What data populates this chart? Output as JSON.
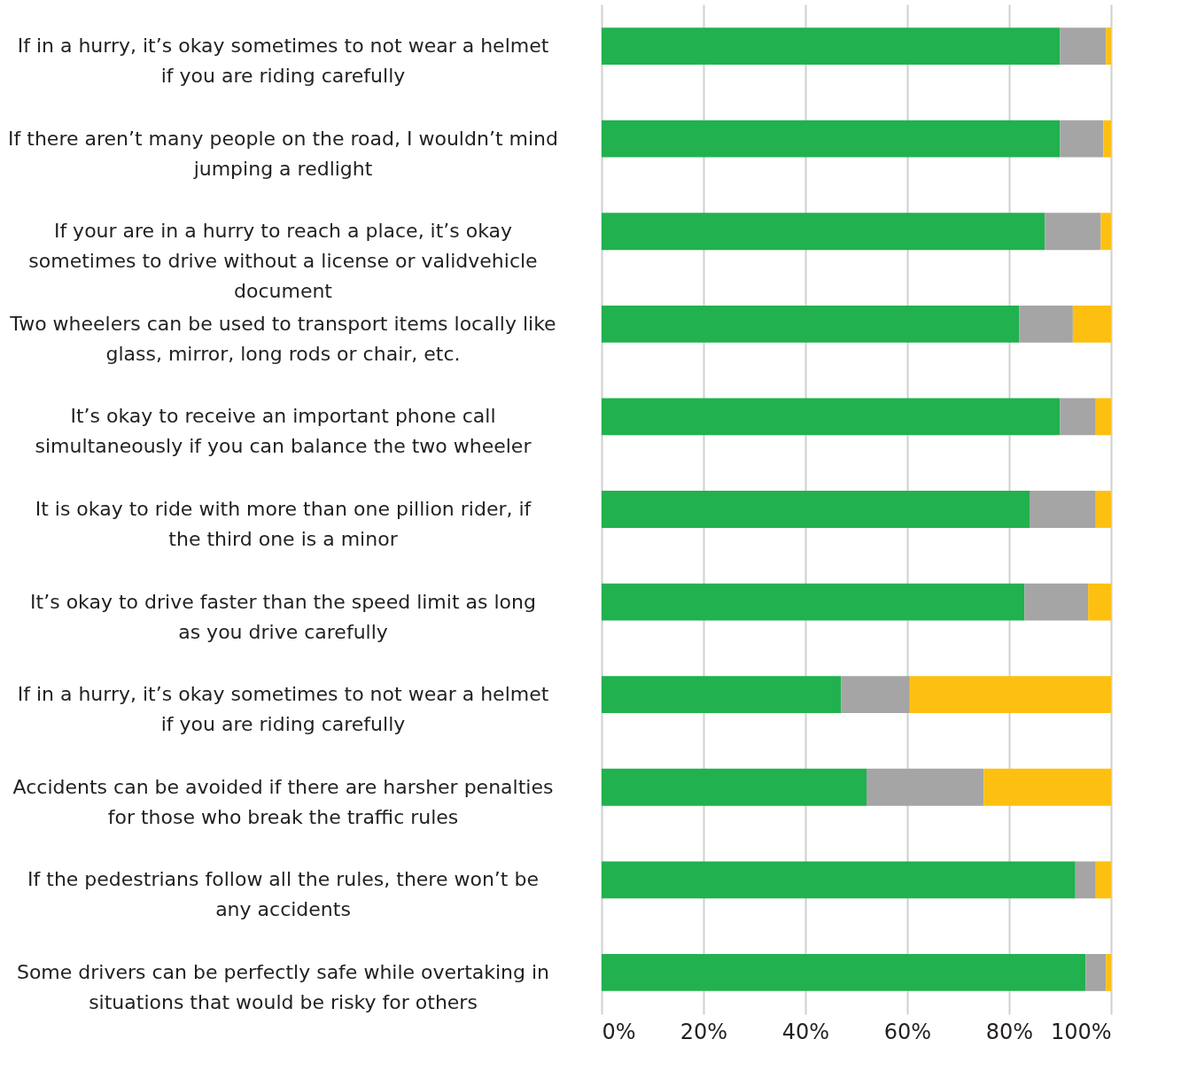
{
  "chart_data": {
    "type": "bar",
    "orientation": "horizontal",
    "stacked": true,
    "categories": [
      "If in a hurry, it’s okay sometimes to not wear a helmet if you are riding carefully",
      "If there aren’t many people on the road, I wouldn’t mind jumping a redlight",
      "If your are in a hurry to reach a place, it’s okay sometimes to drive without a license or validvehicle document",
      "Two wheelers can be used to transport items locally like glass, mirror, long rods or chair, etc.",
      "It’s okay to receive an important phone call simultaneously if you can balance the two wheeler",
      "It is okay to ride with more than one pillion rider, if the third one is a minor",
      "It’s okay to drive faster than the speed limit as long as you drive carefully",
      "If in a hurry, it’s okay sometimes to not wear a helmet if you are riding carefully",
      "Accidents can be avoided if there are harsher penalties for those who break the traffic rules",
      "If the pedestrians follow all the rules, there won’t be any accidents",
      "Some drivers can be perfectly safe while overtaking in situations that would be risky for others"
    ],
    "series": [
      {
        "color": "#21b14f",
        "values": [
          90,
          90,
          87,
          82,
          90,
          84,
          83,
          47,
          52,
          93,
          95
        ]
      },
      {
        "color": "#a5a5a5",
        "values": [
          9,
          8.5,
          11,
          10.5,
          7,
          13,
          12.5,
          13.5,
          23,
          4,
          4
        ]
      },
      {
        "color": "#fdc010",
        "values": [
          1,
          1.5,
          2,
          7.5,
          3,
          3,
          4.5,
          39.5,
          25,
          3,
          1
        ]
      }
    ],
    "xlim": [
      0,
      100
    ],
    "xticks": [
      {
        "value": 0,
        "label": "0%"
      },
      {
        "value": 20,
        "label": "20%"
      },
      {
        "value": 40,
        "label": "40%"
      },
      {
        "value": 60,
        "label": "60%"
      },
      {
        "value": 80,
        "label": "80%"
      },
      {
        "value": 100,
        "label": "100%"
      }
    ],
    "grid": "x",
    "legend": false
  }
}
